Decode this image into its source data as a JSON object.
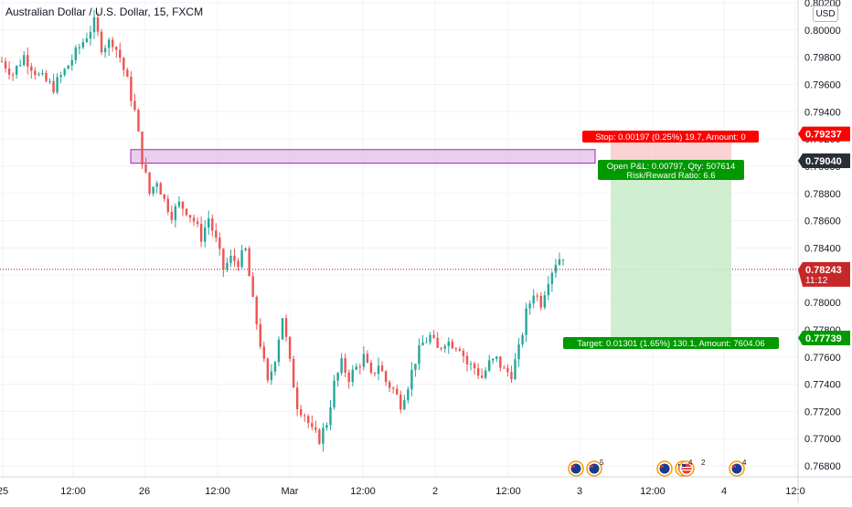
{
  "header": {
    "title": "Australian Dollar / U.S. Dollar, 15, FXCM",
    "currency": "USD"
  },
  "colors": {
    "up": "#26a69a",
    "down": "#ef5350",
    "stop_red": "#ff0000",
    "target_green": "#009900",
    "zone_fill": "#e1bee7",
    "zone_stroke": "#9c27b0"
  },
  "chart_data": {
    "type": "candlestick",
    "symbol": "AUDUSD",
    "interval": "15",
    "ylim": [
      0.7672,
      0.8022
    ],
    "y_ticks": [
      "0.80200",
      "0.80000",
      "0.79800",
      "0.79600",
      "0.79400",
      "0.79200",
      "0.79000",
      "0.78800",
      "0.78600",
      "0.78400",
      "0.78200",
      "0.78000",
      "0.77800",
      "0.77600",
      "0.77400",
      "0.77200",
      "0.77000",
      "0.76800"
    ],
    "x_ticks": [
      "25",
      "12:00",
      "26",
      "12:00",
      "Mar",
      "12:00",
      "2",
      "12:00",
      "3",
      "12:00",
      "4",
      "12:0"
    ],
    "price_path": [
      [
        0,
        0.7977
      ],
      [
        3,
        0.7968
      ],
      [
        6,
        0.7981
      ],
      [
        10,
        0.7966
      ],
      [
        14,
        0.7958
      ],
      [
        17,
        0.797
      ],
      [
        20,
        0.7983
      ],
      [
        23,
        0.7996
      ],
      [
        25,
        0.8005
      ],
      [
        27,
        0.7988
      ],
      [
        30,
        0.7992
      ],
      [
        32,
        0.798
      ],
      [
        34,
        0.7962
      ],
      [
        36,
        0.794
      ],
      [
        38,
        0.7905
      ],
      [
        40,
        0.788
      ],
      [
        42,
        0.789
      ],
      [
        44,
        0.7875
      ],
      [
        46,
        0.7865
      ],
      [
        48,
        0.7872
      ],
      [
        50,
        0.7868
      ],
      [
        52,
        0.786
      ],
      [
        54,
        0.7848
      ],
      [
        56,
        0.7862
      ],
      [
        58,
        0.7845
      ],
      [
        60,
        0.7825
      ],
      [
        62,
        0.7832
      ],
      [
        64,
        0.783
      ],
      [
        66,
        0.7838
      ],
      [
        68,
        0.78
      ],
      [
        70,
        0.777
      ],
      [
        72,
        0.774
      ],
      [
        74,
        0.776
      ],
      [
        76,
        0.779
      ],
      [
        78,
        0.7755
      ],
      [
        80,
        0.7725
      ],
      [
        82,
        0.7718
      ],
      [
        84,
        0.7705
      ],
      [
        86,
        0.77
      ],
      [
        88,
        0.7712
      ],
      [
        90,
        0.774
      ],
      [
        92,
        0.7755
      ],
      [
        94,
        0.7745
      ],
      [
        96,
        0.7752
      ],
      [
        98,
        0.776
      ],
      [
        100,
        0.7745
      ],
      [
        102,
        0.7755
      ],
      [
        104,
        0.7742
      ],
      [
        106,
        0.7736
      ],
      [
        108,
        0.7726
      ],
      [
        110,
        0.774
      ],
      [
        112,
        0.7758
      ],
      [
        114,
        0.777
      ],
      [
        116,
        0.7775
      ],
      [
        118,
        0.7765
      ],
      [
        120,
        0.7772
      ],
      [
        122,
        0.777
      ],
      [
        124,
        0.7768
      ],
      [
        126,
        0.7755
      ],
      [
        128,
        0.7752
      ],
      [
        130,
        0.7745
      ],
      [
        132,
        0.7755
      ],
      [
        134,
        0.7758
      ],
      [
        136,
        0.775
      ],
      [
        138,
        0.7748
      ],
      [
        140,
        0.7765
      ],
      [
        142,
        0.7792
      ],
      [
        144,
        0.7808
      ],
      [
        146,
        0.78
      ],
      [
        148,
        0.7818
      ],
      [
        150,
        0.783
      ],
      [
        152,
        0.7835
      ]
    ],
    "bars": 153,
    "seed": 7,
    "current_price": "0.78243",
    "countdown": "11:12",
    "position": {
      "entry": "0.79040",
      "stop": "0.79237",
      "target": "0.77739",
      "stop_label": "Stop: 0.00197 (0.25%) 19.7, Amount: 0",
      "pnl_label": "Open P&L: 0.00797, Qty: 507614",
      "rr_label": "Risk/Reward Ratio: 6.6",
      "target_label": "Target: 0.01301 (1.65%) 130.1, Amount: 7604.06"
    },
    "zone": {
      "top": 0.79122,
      "bottom": 0.79022
    },
    "events": [
      {
        "flags": [
          "AU",
          "AU"
        ],
        "count": "5"
      },
      {
        "flags": [
          "AU",
          "US",
          "US"
        ],
        "count": "4",
        "count2": "2"
      },
      {
        "flags": [
          "AU"
        ],
        "count": "4"
      }
    ]
  }
}
